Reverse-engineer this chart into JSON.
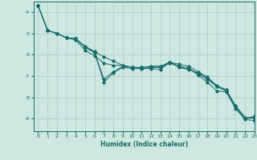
{
  "xlabel": "Humidex (Indice chaleur)",
  "background_color": "#cce8e0",
  "grid_color": "#a8cfc8",
  "line_color": "#1a6b6b",
  "xlim": [
    -0.5,
    23
  ],
  "ylim": [
    -9.6,
    -3.5
  ],
  "yticks": [
    -9,
    -8,
    -7,
    -6,
    -5,
    -4
  ],
  "xticks": [
    0,
    1,
    2,
    3,
    4,
    5,
    6,
    7,
    8,
    9,
    10,
    11,
    12,
    13,
    14,
    15,
    16,
    17,
    18,
    19,
    20,
    21,
    22,
    23
  ],
  "series": [
    [
      0,
      1,
      2,
      3,
      4,
      5,
      6,
      7,
      8,
      9,
      10,
      11,
      12,
      13,
      14,
      15,
      16,
      17,
      18,
      19,
      20,
      21,
      22,
      23
    ],
    [
      -3.7,
      -4.85,
      -5.0,
      -5.2,
      -5.25,
      -5.6,
      -5.85,
      -6.1,
      -6.3,
      -6.5,
      -6.6,
      -6.65,
      -6.65,
      -6.7,
      -6.35,
      -6.6,
      -6.7,
      -6.85,
      -7.1,
      -7.5,
      -7.7,
      -8.45,
      -9.0,
      -8.9
    ]
  ],
  "series2": [
    [
      0,
      1,
      2,
      3,
      4,
      5,
      6,
      7,
      8,
      9,
      10,
      11,
      12,
      13,
      14,
      15,
      16,
      17,
      18,
      19,
      20,
      21,
      22,
      23
    ],
    [
      -3.7,
      -4.85,
      -5.0,
      -5.2,
      -5.25,
      -5.65,
      -5.9,
      -7.15,
      -6.8,
      -6.55,
      -6.6,
      -6.6,
      -6.55,
      -6.55,
      -6.35,
      -6.55,
      -6.65,
      -6.9,
      -7.15,
      -7.5,
      -7.7,
      -8.45,
      -9.0,
      -8.95
    ]
  ],
  "series3": [
    [
      0,
      1,
      2,
      3,
      4,
      5,
      6,
      7,
      8,
      9,
      10,
      11,
      12,
      13,
      14,
      15,
      16,
      17,
      18,
      19,
      20,
      21,
      22,
      23
    ],
    [
      -3.7,
      -4.85,
      -5.0,
      -5.2,
      -5.25,
      -5.65,
      -5.9,
      -7.3,
      -6.85,
      -6.6,
      -6.65,
      -6.65,
      -6.6,
      -6.6,
      -6.4,
      -6.55,
      -6.65,
      -6.95,
      -7.3,
      -7.7,
      -7.75,
      -8.55,
      -9.05,
      -9.1
    ]
  ],
  "series4": [
    [
      0,
      1,
      2,
      3,
      4,
      5,
      6,
      7,
      8,
      9,
      10,
      11,
      12,
      13,
      14,
      15,
      16,
      17,
      18,
      19,
      20,
      21,
      22,
      23
    ],
    [
      -3.7,
      -4.85,
      -5.0,
      -5.2,
      -5.3,
      -5.8,
      -6.05,
      -6.4,
      -6.5,
      -6.5,
      -6.6,
      -6.6,
      -6.55,
      -6.55,
      -6.35,
      -6.45,
      -6.55,
      -6.8,
      -7.05,
      -7.45,
      -7.65,
      -8.4,
      -8.95,
      -9.0
    ]
  ]
}
